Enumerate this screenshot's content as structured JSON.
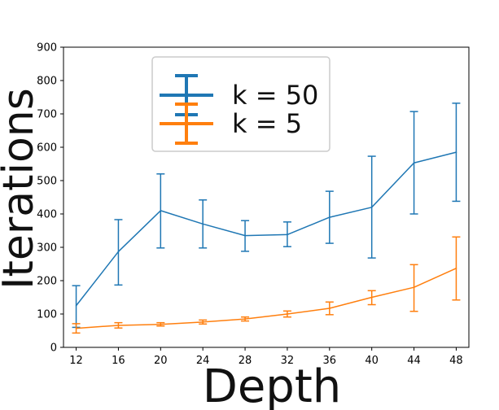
{
  "chart_data": {
    "type": "line",
    "title": "",
    "xlabel": "Depth",
    "ylabel": "Iterations",
    "x": [
      12,
      16,
      20,
      24,
      28,
      32,
      36,
      40,
      44,
      48
    ],
    "x_ticks": [
      12,
      16,
      20,
      24,
      28,
      32,
      36,
      40,
      44,
      48
    ],
    "y_ticks": [
      0,
      100,
      200,
      300,
      400,
      500,
      600,
      700,
      800,
      900
    ],
    "xlim": [
      10.8,
      49.2
    ],
    "ylim": [
      0,
      900
    ],
    "grid": false,
    "legend_position": "top-center",
    "series": [
      {
        "name": "k = 50",
        "color": "#1f77b4",
        "values": [
          125,
          287,
          410,
          370,
          335,
          338,
          390,
          420,
          553,
          585
        ],
        "err_low": [
          60,
          187,
          298,
          298,
          288,
          302,
          312,
          268,
          400,
          438
        ],
        "err_high": [
          185,
          383,
          520,
          442,
          380,
          376,
          468,
          573,
          707,
          732
        ]
      },
      {
        "name": "k = 5",
        "color": "#ff7f0e",
        "values": [
          57,
          66,
          69,
          76,
          85,
          100,
          117,
          150,
          180,
          237
        ],
        "err_low": [
          43,
          58,
          64,
          70,
          79,
          91,
          98,
          128,
          108,
          142
        ],
        "err_high": [
          71,
          74,
          74,
          82,
          91,
          109,
          136,
          170,
          248,
          331
        ]
      }
    ]
  }
}
